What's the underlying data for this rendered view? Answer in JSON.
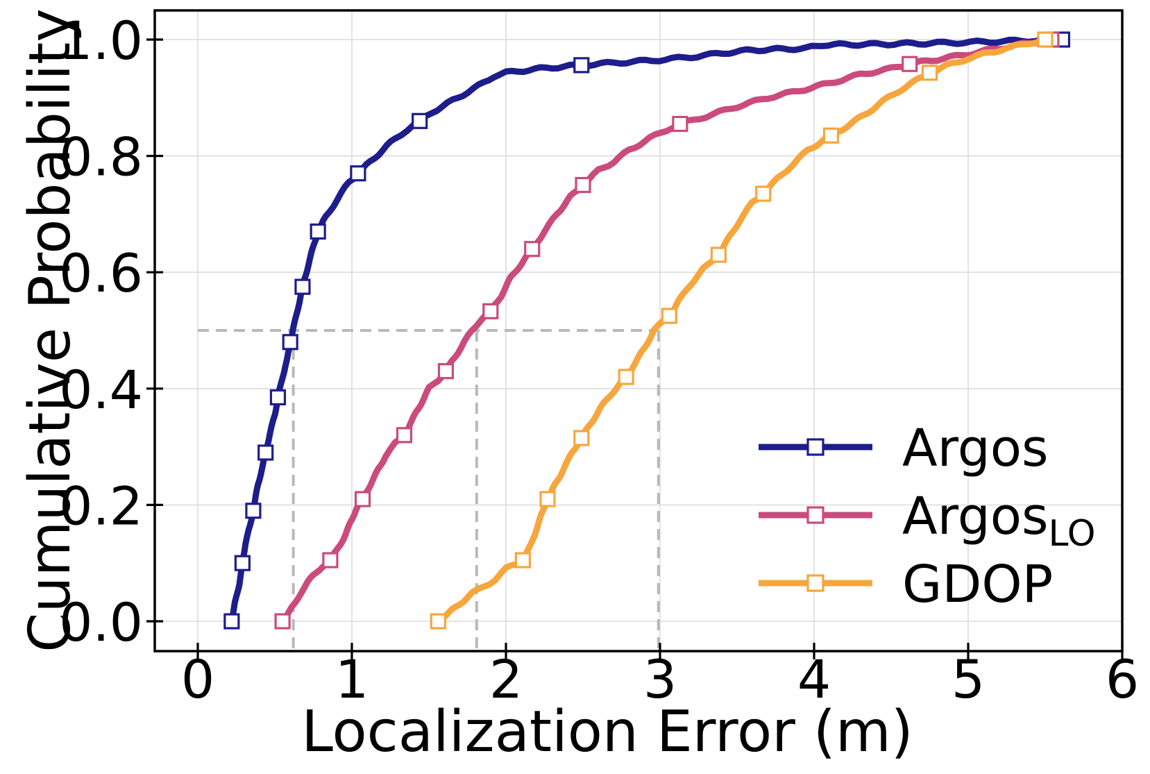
{
  "page": {
    "background": "#ffffff"
  },
  "chart_data": {
    "type": "line",
    "subtype": "cdf",
    "title": "",
    "xlabel": "Localization Error (m)",
    "ylabel": "Cumulative Probability",
    "xlim": [
      -0.28,
      6.0
    ],
    "ylim": [
      -0.05,
      1.05
    ],
    "x_ticks": [
      "0",
      "1",
      "2",
      "3",
      "4",
      "5",
      "6"
    ],
    "x_tick_values": [
      0,
      1,
      2,
      3,
      4,
      5,
      6
    ],
    "y_ticks": [
      "0.0",
      "0.2",
      "0.4",
      "0.6",
      "0.8",
      "1.0"
    ],
    "y_tick_values": [
      0,
      0.2,
      0.4,
      0.6,
      0.8,
      1.0
    ],
    "grid": true,
    "grid_color": "#dcdcdc",
    "guide_color": "#b9b9b9",
    "legend": {
      "position": "lower right"
    },
    "median_guides": {
      "y": 0.5,
      "x_values": [
        0.62,
        1.81,
        2.99
      ],
      "hline_x_range": [
        0,
        2.99
      ]
    },
    "series": [
      {
        "name": "Argos",
        "legend_main": "Argos",
        "legend_sub": "",
        "color": "#1d1d8c",
        "median": 0.62,
        "points": [
          [
            0.22,
            0
          ],
          [
            0.24,
            0.03
          ],
          [
            0.27,
            0.065
          ],
          [
            0.29,
            0.1
          ],
          [
            0.31,
            0.135
          ],
          [
            0.34,
            0.165
          ],
          [
            0.36,
            0.19
          ],
          [
            0.39,
            0.235
          ],
          [
            0.42,
            0.265
          ],
          [
            0.44,
            0.29
          ],
          [
            0.47,
            0.325
          ],
          [
            0.5,
            0.355
          ],
          [
            0.52,
            0.385
          ],
          [
            0.55,
            0.42
          ],
          [
            0.58,
            0.45
          ],
          [
            0.6,
            0.48
          ],
          [
            0.63,
            0.515
          ],
          [
            0.66,
            0.55
          ],
          [
            0.68,
            0.575
          ],
          [
            0.72,
            0.615
          ],
          [
            0.75,
            0.645
          ],
          [
            0.78,
            0.67
          ],
          [
            0.83,
            0.695
          ],
          [
            0.88,
            0.715
          ],
          [
            0.93,
            0.735
          ],
          [
            0.98,
            0.755
          ],
          [
            1.04,
            0.77
          ],
          [
            1.12,
            0.79
          ],
          [
            1.2,
            0.81
          ],
          [
            1.28,
            0.83
          ],
          [
            1.36,
            0.845
          ],
          [
            1.44,
            0.86
          ],
          [
            1.52,
            0.875
          ],
          [
            1.62,
            0.89
          ],
          [
            1.72,
            0.905
          ],
          [
            1.82,
            0.92
          ],
          [
            1.92,
            0.937
          ],
          [
            2.0,
            0.943
          ],
          [
            2.15,
            0.948
          ],
          [
            2.3,
            0.952
          ],
          [
            2.49,
            0.956
          ],
          [
            2.7,
            0.96
          ],
          [
            2.95,
            0.964
          ],
          [
            3.2,
            0.97
          ],
          [
            3.45,
            0.978
          ],
          [
            3.6,
            0.982
          ],
          [
            3.95,
            0.985
          ],
          [
            4.05,
            0.991
          ],
          [
            4.4,
            0.992
          ],
          [
            4.8,
            0.994
          ],
          [
            5.1,
            0.996
          ],
          [
            5.35,
            0.998
          ],
          [
            5.61,
            1.0
          ]
        ],
        "markers": [
          [
            0.22,
            0
          ],
          [
            0.29,
            0.1
          ],
          [
            0.36,
            0.19
          ],
          [
            0.44,
            0.29
          ],
          [
            0.52,
            0.385
          ],
          [
            0.6,
            0.48
          ],
          [
            0.68,
            0.575
          ],
          [
            0.78,
            0.67
          ],
          [
            1.04,
            0.77
          ],
          [
            1.44,
            0.86
          ],
          [
            2.49,
            0.956
          ],
          [
            5.61,
            1.0
          ]
        ]
      },
      {
        "name": "ArgosLO",
        "legend_main": "Argos",
        "legend_sub": "LO",
        "color": "#ca4b7c",
        "median": 1.81,
        "points": [
          [
            0.55,
            0
          ],
          [
            0.59,
            0.015
          ],
          [
            0.63,
            0.03
          ],
          [
            0.67,
            0.05
          ],
          [
            0.71,
            0.065
          ],
          [
            0.75,
            0.08
          ],
          [
            0.79,
            0.09
          ],
          [
            0.83,
            0.1
          ],
          [
            0.86,
            0.105
          ],
          [
            0.91,
            0.125
          ],
          [
            0.96,
            0.15
          ],
          [
            1.0,
            0.175
          ],
          [
            1.03,
            0.195
          ],
          [
            1.07,
            0.21
          ],
          [
            1.12,
            0.235
          ],
          [
            1.17,
            0.26
          ],
          [
            1.22,
            0.285
          ],
          [
            1.28,
            0.305
          ],
          [
            1.34,
            0.32
          ],
          [
            1.4,
            0.35
          ],
          [
            1.45,
            0.375
          ],
          [
            1.5,
            0.4
          ],
          [
            1.56,
            0.415
          ],
          [
            1.61,
            0.43
          ],
          [
            1.67,
            0.455
          ],
          [
            1.73,
            0.48
          ],
          [
            1.78,
            0.5
          ],
          [
            1.84,
            0.52
          ],
          [
            1.9,
            0.533
          ],
          [
            1.97,
            0.56
          ],
          [
            2.03,
            0.59
          ],
          [
            2.1,
            0.615
          ],
          [
            2.17,
            0.64
          ],
          [
            2.25,
            0.67
          ],
          [
            2.33,
            0.7
          ],
          [
            2.42,
            0.73
          ],
          [
            2.5,
            0.75
          ],
          [
            2.6,
            0.775
          ],
          [
            2.7,
            0.79
          ],
          [
            2.8,
            0.81
          ],
          [
            2.9,
            0.825
          ],
          [
            3.0,
            0.84
          ],
          [
            3.13,
            0.855
          ],
          [
            3.3,
            0.868
          ],
          [
            3.5,
            0.885
          ],
          [
            3.7,
            0.9
          ],
          [
            3.9,
            0.912
          ],
          [
            4.1,
            0.925
          ],
          [
            4.3,
            0.94
          ],
          [
            4.5,
            0.95
          ],
          [
            4.62,
            0.958
          ],
          [
            4.8,
            0.966
          ],
          [
            5.0,
            0.975
          ],
          [
            5.2,
            0.985
          ],
          [
            5.4,
            0.994
          ],
          [
            5.54,
            1.0
          ]
        ],
        "markers": [
          [
            0.55,
            0
          ],
          [
            0.86,
            0.105
          ],
          [
            1.07,
            0.21
          ],
          [
            1.34,
            0.32
          ],
          [
            1.61,
            0.43
          ],
          [
            1.9,
            0.533
          ],
          [
            2.17,
            0.64
          ],
          [
            2.5,
            0.75
          ],
          [
            3.13,
            0.855
          ],
          [
            4.62,
            0.958
          ],
          [
            5.54,
            1.0
          ]
        ]
      },
      {
        "name": "GDOP",
        "legend_main": "GDOP",
        "legend_sub": "",
        "color": "#f7a63d",
        "median": 2.99,
        "points": [
          [
            1.56,
            0
          ],
          [
            1.62,
            0.012
          ],
          [
            1.7,
            0.03
          ],
          [
            1.78,
            0.048
          ],
          [
            1.86,
            0.06
          ],
          [
            1.93,
            0.072
          ],
          [
            2.0,
            0.09
          ],
          [
            2.07,
            0.1
          ],
          [
            2.11,
            0.105
          ],
          [
            2.16,
            0.13
          ],
          [
            2.2,
            0.16
          ],
          [
            2.24,
            0.19
          ],
          [
            2.27,
            0.21
          ],
          [
            2.32,
            0.235
          ],
          [
            2.37,
            0.26
          ],
          [
            2.43,
            0.29
          ],
          [
            2.49,
            0.315
          ],
          [
            2.55,
            0.34
          ],
          [
            2.61,
            0.365
          ],
          [
            2.68,
            0.39
          ],
          [
            2.73,
            0.405
          ],
          [
            2.78,
            0.42
          ],
          [
            2.84,
            0.445
          ],
          [
            2.9,
            0.47
          ],
          [
            2.96,
            0.5
          ],
          [
            3.02,
            0.515
          ],
          [
            3.06,
            0.525
          ],
          [
            3.12,
            0.55
          ],
          [
            3.2,
            0.58
          ],
          [
            3.28,
            0.605
          ],
          [
            3.38,
            0.63
          ],
          [
            3.45,
            0.66
          ],
          [
            3.52,
            0.69
          ],
          [
            3.6,
            0.72
          ],
          [
            3.67,
            0.735
          ],
          [
            3.76,
            0.76
          ],
          [
            3.86,
            0.785
          ],
          [
            3.96,
            0.81
          ],
          [
            4.05,
            0.825
          ],
          [
            4.11,
            0.835
          ],
          [
            4.22,
            0.852
          ],
          [
            4.35,
            0.875
          ],
          [
            4.48,
            0.9
          ],
          [
            4.6,
            0.92
          ],
          [
            4.7,
            0.935
          ],
          [
            4.75,
            0.943
          ],
          [
            4.86,
            0.955
          ],
          [
            4.97,
            0.965
          ],
          [
            5.1,
            0.975
          ],
          [
            5.25,
            0.985
          ],
          [
            5.38,
            0.993
          ],
          [
            5.5,
            1.0
          ]
        ],
        "markers": [
          [
            1.56,
            0
          ],
          [
            2.11,
            0.105
          ],
          [
            2.27,
            0.21
          ],
          [
            2.49,
            0.315
          ],
          [
            2.78,
            0.42
          ],
          [
            3.06,
            0.525
          ],
          [
            3.38,
            0.63
          ],
          [
            3.67,
            0.735
          ],
          [
            4.11,
            0.835
          ],
          [
            4.75,
            0.943
          ],
          [
            5.5,
            1.0
          ]
        ]
      }
    ]
  }
}
